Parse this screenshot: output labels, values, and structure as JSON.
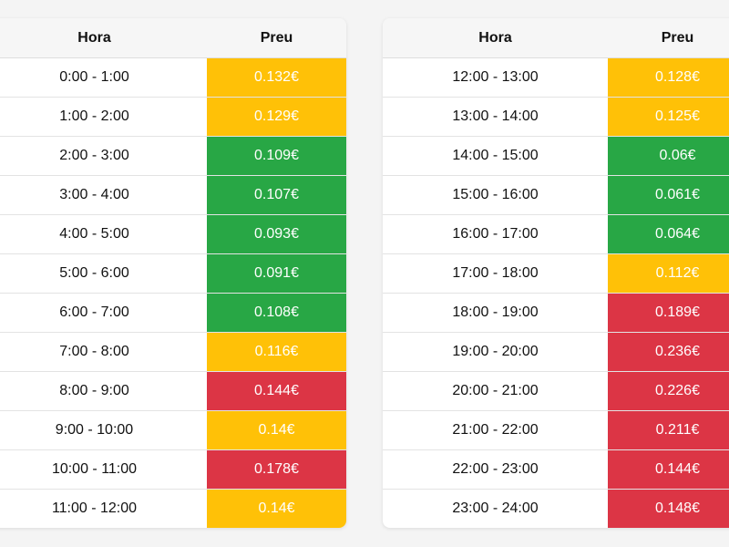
{
  "colors": {
    "yellow": "#ffc107",
    "green": "#28a745",
    "red": "#dc3545"
  },
  "left_table": {
    "headers": {
      "hora": "Hora",
      "preu": "Preu"
    },
    "rows": [
      {
        "hora": "0:00 - 1:00",
        "preu": "0.132€",
        "level": "yellow"
      },
      {
        "hora": "1:00 - 2:00",
        "preu": "0.129€",
        "level": "yellow"
      },
      {
        "hora": "2:00 - 3:00",
        "preu": "0.109€",
        "level": "green"
      },
      {
        "hora": "3:00 - 4:00",
        "preu": "0.107€",
        "level": "green"
      },
      {
        "hora": "4:00 - 5:00",
        "preu": "0.093€",
        "level": "green"
      },
      {
        "hora": "5:00 - 6:00",
        "preu": "0.091€",
        "level": "green"
      },
      {
        "hora": "6:00 - 7:00",
        "preu": "0.108€",
        "level": "green"
      },
      {
        "hora": "7:00 - 8:00",
        "preu": "0.116€",
        "level": "yellow"
      },
      {
        "hora": "8:00 - 9:00",
        "preu": "0.144€",
        "level": "red"
      },
      {
        "hora": "9:00 - 10:00",
        "preu": "0.14€",
        "level": "yellow"
      },
      {
        "hora": "10:00 - 11:00",
        "preu": "0.178€",
        "level": "red"
      },
      {
        "hora": "11:00 - 12:00",
        "preu": "0.14€",
        "level": "yellow"
      }
    ]
  },
  "right_table": {
    "headers": {
      "hora": "Hora",
      "preu": "Preu"
    },
    "rows": [
      {
        "hora": "12:00 - 13:00",
        "preu": "0.128€",
        "level": "yellow"
      },
      {
        "hora": "13:00 - 14:00",
        "preu": "0.125€",
        "level": "yellow"
      },
      {
        "hora": "14:00 - 15:00",
        "preu": "0.06€",
        "level": "green"
      },
      {
        "hora": "15:00 - 16:00",
        "preu": "0.061€",
        "level": "green"
      },
      {
        "hora": "16:00 - 17:00",
        "preu": "0.064€",
        "level": "green"
      },
      {
        "hora": "17:00 - 18:00",
        "preu": "0.112€",
        "level": "yellow"
      },
      {
        "hora": "18:00 - 19:00",
        "preu": "0.189€",
        "level": "red"
      },
      {
        "hora": "19:00 - 20:00",
        "preu": "0.236€",
        "level": "red"
      },
      {
        "hora": "20:00 - 21:00",
        "preu": "0.226€",
        "level": "red"
      },
      {
        "hora": "21:00 - 22:00",
        "preu": "0.211€",
        "level": "red"
      },
      {
        "hora": "22:00 - 23:00",
        "preu": "0.144€",
        "level": "red"
      },
      {
        "hora": "23:00 - 24:00",
        "preu": "0.148€",
        "level": "red"
      }
    ]
  }
}
